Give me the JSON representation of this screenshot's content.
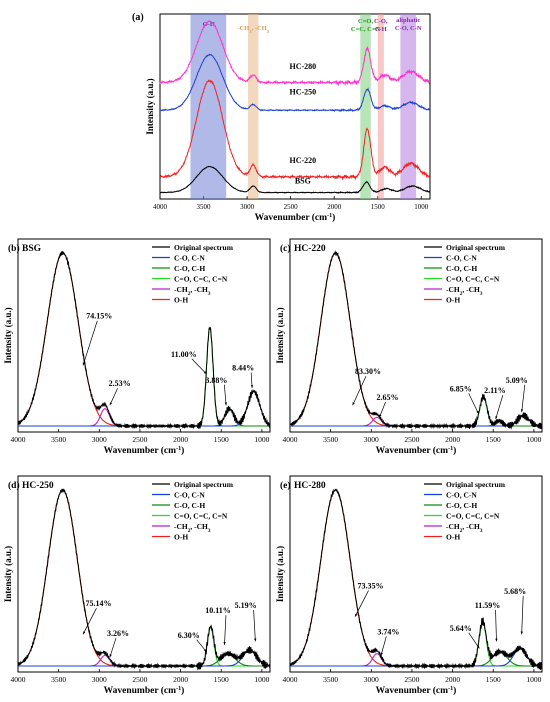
{
  "chart_data": [
    {
      "id": "a",
      "type": "line",
      "panel_label": "(a)",
      "xlabel_text": "Wavenumber (cm",
      "xlabel_sup": "-1",
      "xlabel_close": ")",
      "ylabel": "Intensity (a.u.)",
      "xlim": [
        4000,
        900
      ],
      "xticks": [
        4000,
        3500,
        3000,
        2500,
        2000,
        1500,
        1000
      ],
      "bands": [
        {
          "label": "O-H",
          "from": 3650,
          "to": 3240,
          "color": "#6f7fd6",
          "label_color": "#3b4fb0"
        },
        {
          "label": "-CH3, -CH2",
          "from": 2990,
          "to": 2870,
          "color": "#e8b888",
          "label_color": "#d99a4a"
        },
        {
          "label": "C=O, C=C, C=N",
          "from": 1700,
          "to": 1580,
          "color": "#7ed07e",
          "label_color": "#1c9a1c"
        },
        {
          "label": "C-O, C-H",
          "from": 1500,
          "to": 1430,
          "color": "#f29a9a",
          "label_color": "#8a2ab0"
        },
        {
          "label": "aliphatic C-O, C-N",
          "from": 1240,
          "to": 1060,
          "color": "#b37be0",
          "label_color": "#8a2ab0"
        }
      ],
      "series": [
        {
          "name": "HC-280",
          "color": "#ff33cc",
          "baseline": 0.63,
          "scale": 0.33,
          "noise": 0.012
        },
        {
          "name": "HC-250",
          "color": "#1a3fd6",
          "baseline": 0.48,
          "scale": 0.3,
          "noise": 0.006
        },
        {
          "name": "HC-220",
          "color": "#ee2222",
          "baseline": 0.12,
          "scale": 0.52,
          "noise": 0.012
        },
        {
          "name": "BSG",
          "color": "#000000",
          "baseline": 0.035,
          "scale": 0.14,
          "noise": 0.004
        }
      ]
    },
    {
      "id": "b",
      "type": "line",
      "panel_label": "(b)",
      "sample": "BSG",
      "ylabel": "Intensity (a.u.)",
      "xlabel_text": "Wavenumber (cm",
      "xlabel_sup": "-1",
      "xlabel_close": ")",
      "xlim": [
        4000,
        900
      ],
      "xticks": [
        4000,
        3500,
        3000,
        2500,
        2000,
        1500,
        1000
      ],
      "legend": [
        {
          "name": "Original spectrum",
          "color": "#000000"
        },
        {
          "name": "C-O, C-N",
          "color": "#1a3fd6"
        },
        {
          "name": "C-O, C-H",
          "color": "#0b8a0b"
        },
        {
          "name": "C=O, C=C, C=N",
          "color": "#22dd22"
        },
        {
          "name": "-CH2, -CH3",
          "color": "#b822cc"
        },
        {
          "name": "O-H",
          "color": "#ee2222"
        }
      ],
      "peaks": [
        {
          "center": 3450,
          "height": 1.0,
          "width": 190,
          "color": "#ee2222"
        },
        {
          "center": 2930,
          "height": 0.1,
          "width": 55,
          "color": "#b822cc"
        },
        {
          "center": 1640,
          "height": 0.57,
          "width": 40,
          "color": "#22dd22"
        },
        {
          "center": 1400,
          "height": 0.1,
          "width": 55,
          "color": "#0b8a0b"
        },
        {
          "center": 1100,
          "height": 0.2,
          "width": 75,
          "color": "#1a3fd6"
        }
      ],
      "percent_labels": [
        {
          "text": "74.15%",
          "x": 3000,
          "y": 0.62,
          "ax": 3200,
          "ay": 0.35
        },
        {
          "text": "2.53%",
          "x": 2750,
          "y": 0.23,
          "ax": 2870,
          "ay": 0.12
        },
        {
          "text": "11.00%",
          "x": 1960,
          "y": 0.4,
          "ax": 1680,
          "ay": 0.3
        },
        {
          "text": "3.88%",
          "x": 1560,
          "y": 0.25,
          "ax": 1440,
          "ay": 0.12
        },
        {
          "text": "8.44%",
          "x": 1230,
          "y": 0.32,
          "ax": 1120,
          "ay": 0.22
        }
      ]
    },
    {
      "id": "c",
      "type": "line",
      "panel_label": "(c)",
      "sample": "HC-220",
      "ylabel": "Intensity (a.u.)",
      "xlabel_text": "Wavenumber (cm",
      "xlabel_sup": "-1",
      "xlabel_close": ")",
      "xlim": [
        4000,
        900
      ],
      "xticks": [
        4000,
        3500,
        3000,
        2500,
        2000,
        1500,
        1000
      ],
      "legend": [
        {
          "name": "Original spectrum",
          "color": "#000000"
        },
        {
          "name": "C-O, C-N",
          "color": "#1a3fd6"
        },
        {
          "name": "C-O, C-H",
          "color": "#0b8a0b"
        },
        {
          "name": "C=O, C=C, C=N",
          "color": "#22dd22"
        },
        {
          "name": "-CH2, -CH3",
          "color": "#b822cc"
        },
        {
          "name": "O-H",
          "color": "#ee2222"
        }
      ],
      "peaks": [
        {
          "center": 3440,
          "height": 1.0,
          "width": 180,
          "color": "#ee2222"
        },
        {
          "center": 2930,
          "height": 0.05,
          "width": 55,
          "color": "#b822cc"
        },
        {
          "center": 1620,
          "height": 0.17,
          "width": 45,
          "color": "#22dd22"
        },
        {
          "center": 1430,
          "height": 0.03,
          "width": 45,
          "color": "#0b8a0b"
        },
        {
          "center": 1130,
          "height": 0.06,
          "width": 70,
          "color": "#1a3fd6"
        }
      ],
      "percent_labels": [
        {
          "text": "83.30%",
          "x": 3040,
          "y": 0.3,
          "ax": 3230,
          "ay": 0.12
        },
        {
          "text": "2.65%",
          "x": 2800,
          "y": 0.15,
          "ax": 2900,
          "ay": 0.05
        },
        {
          "text": "6.85%",
          "x": 1900,
          "y": 0.2,
          "ax": 1680,
          "ay": 0.07
        },
        {
          "text": "2.11%",
          "x": 1480,
          "y": 0.19,
          "ax": 1470,
          "ay": 0.04
        },
        {
          "text": "5.09%",
          "x": 1210,
          "y": 0.25,
          "ax": 1150,
          "ay": 0.08
        }
      ]
    },
    {
      "id": "d",
      "type": "line",
      "panel_label": "(d)",
      "sample": "HC-250",
      "ylabel": "Intensity (a.u.)",
      "xlabel_text": "Wavenumber (cm",
      "xlabel_sup": "-1",
      "xlabel_close": ")",
      "xlim": [
        4000,
        900
      ],
      "xticks": [
        4000,
        3500,
        3000,
        2500,
        2000,
        1500,
        1000
      ],
      "legend": [
        {
          "name": "Original spectrum",
          "color": "#000000"
        },
        {
          "name": "C-O, C-N",
          "color": "#1a3fd6"
        },
        {
          "name": "C-O, C-H",
          "color": "#0b8a0b"
        },
        {
          "name": "C=O, C=C, C=N",
          "color": "#22dd22"
        },
        {
          "name": "-CH2, -CH3",
          "color": "#b822cc"
        },
        {
          "name": "O-H",
          "color": "#ee2222"
        }
      ],
      "peaks": [
        {
          "center": 3450,
          "height": 1.0,
          "width": 180,
          "color": "#ee2222"
        },
        {
          "center": 2930,
          "height": 0.06,
          "width": 55,
          "color": "#b822cc"
        },
        {
          "center": 1630,
          "height": 0.22,
          "width": 40,
          "color": "#22dd22"
        },
        {
          "center": 1420,
          "height": 0.07,
          "width": 90,
          "color": "#0b8a0b"
        },
        {
          "center": 1150,
          "height": 0.09,
          "width": 85,
          "color": "#1a3fd6"
        }
      ],
      "percent_labels": [
        {
          "text": "75.14%",
          "x": 3010,
          "y": 0.34,
          "ax": 3200,
          "ay": 0.18
        },
        {
          "text": "3.26%",
          "x": 2770,
          "y": 0.17,
          "ax": 2870,
          "ay": 0.05
        },
        {
          "text": "6.30%",
          "x": 1900,
          "y": 0.16,
          "ax": 1680,
          "ay": 0.08
        },
        {
          "text": "10.11%",
          "x": 1540,
          "y": 0.3,
          "ax": 1460,
          "ay": 0.12
        },
        {
          "text": "5.19%",
          "x": 1200,
          "y": 0.33,
          "ax": 1080,
          "ay": 0.14
        }
      ]
    },
    {
      "id": "e",
      "type": "line",
      "panel_label": "(e)",
      "sample": "HC-280",
      "ylabel": "Intensity (a.u.)",
      "xlabel_text": "Wavenumber (cm",
      "xlabel_sup": "-1",
      "xlabel_close": ")",
      "xlim": [
        4000,
        900
      ],
      "xticks": [
        4000,
        3500,
        3000,
        2500,
        2000,
        1500,
        1000
      ],
      "legend": [
        {
          "name": "Original spectrum",
          "color": "#000000"
        },
        {
          "name": "C-O, C-N",
          "color": "#1a3fd6"
        },
        {
          "name": "C-O, C-H",
          "color": "#0b8a0b"
        },
        {
          "name": "C=O, C=C, C=N",
          "color": "#22dd22"
        },
        {
          "name": "-CH2, -CH3",
          "color": "#b822cc"
        },
        {
          "name": "O-H",
          "color": "#ee2222"
        }
      ],
      "peaks": [
        {
          "center": 3440,
          "height": 1.0,
          "width": 180,
          "color": "#ee2222"
        },
        {
          "center": 2930,
          "height": 0.07,
          "width": 55,
          "color": "#b822cc"
        },
        {
          "center": 1630,
          "height": 0.25,
          "width": 45,
          "color": "#22dd22"
        },
        {
          "center": 1420,
          "height": 0.08,
          "width": 90,
          "color": "#0b8a0b"
        },
        {
          "center": 1170,
          "height": 0.1,
          "width": 80,
          "color": "#1a3fd6"
        }
      ],
      "percent_labels": [
        {
          "text": "73.35%",
          "x": 3010,
          "y": 0.44,
          "ax": 3200,
          "ay": 0.28
        },
        {
          "text": "3.74%",
          "x": 2790,
          "y": 0.18,
          "ax": 2880,
          "ay": 0.06
        },
        {
          "text": "5.64%",
          "x": 1900,
          "y": 0.2,
          "ax": 1670,
          "ay": 0.1
        },
        {
          "text": "11.59%",
          "x": 1570,
          "y": 0.33,
          "ax": 1460,
          "ay": 0.14
        },
        {
          "text": "5.68%",
          "x": 1230,
          "y": 0.41,
          "ax": 1150,
          "ay": 0.18
        }
      ]
    }
  ]
}
